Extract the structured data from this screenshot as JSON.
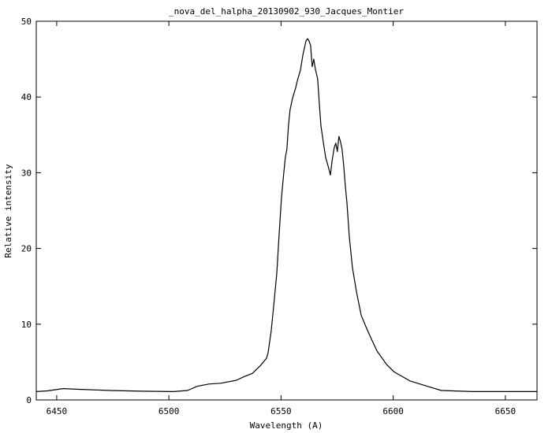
{
  "chart_data": {
    "type": "line",
    "title": "_nova_del_halpha_20130902_930_Jacques_Montier",
    "xlabel": "Wavelength (A)",
    "ylabel": "Relative intensity",
    "xlim": [
      6440.9,
      6664.1
    ],
    "ylim": [
      0,
      50
    ],
    "xticks": [
      6450,
      6500,
      6550,
      6600,
      6650
    ],
    "yticks": [
      0,
      10,
      20,
      30,
      40,
      50
    ],
    "grid": false,
    "legend": null,
    "series": [
      {
        "name": "nova_del_halpha",
        "color": "#000000",
        "x": [
          6440.9,
          6445.8,
          6452.8,
          6459.8,
          6473.9,
          6488.0,
          6502.0,
          6508.3,
          6512.6,
          6517.8,
          6523.1,
          6530.1,
          6533.7,
          6537.2,
          6540.7,
          6543.5,
          6544.2,
          6545.6,
          6547.0,
          6548.1,
          6549.1,
          6550.2,
          6551.2,
          6551.9,
          6552.6,
          6553.3,
          6554.0,
          6555.1,
          6556.5,
          6557.5,
          6558.6,
          6559.7,
          6561.1,
          6561.8,
          6562.5,
          6563.2,
          6563.9,
          6564.6,
          6565.3,
          6566.3,
          6567.0,
          6567.8,
          6568.8,
          6569.9,
          6570.9,
          6572.0,
          6572.7,
          6573.7,
          6574.4,
          6575.1,
          6575.8,
          6576.5,
          6577.2,
          6577.9,
          6578.6,
          6579.4,
          6580.4,
          6581.8,
          6583.6,
          6585.7,
          6587.8,
          6589.9,
          6592.7,
          6597.0,
          6600.4,
          6607.5,
          6616.3,
          6621.5,
          6635.6,
          6649.6,
          6664.1
        ],
        "y": [
          1.1,
          1.2,
          1.5,
          1.4,
          1.25,
          1.15,
          1.1,
          1.25,
          1.8,
          2.1,
          2.2,
          2.6,
          3.1,
          3.5,
          4.5,
          5.5,
          6.2,
          9.1,
          13.3,
          16.7,
          21.6,
          26.8,
          29.9,
          32.0,
          33.1,
          36.2,
          38.3,
          39.8,
          41.2,
          42.4,
          43.5,
          45.5,
          47.4,
          47.7,
          47.4,
          46.8,
          44.0,
          45.0,
          43.7,
          42.4,
          39.3,
          36.2,
          34.1,
          32.0,
          31.0,
          29.7,
          31.5,
          33.3,
          33.9,
          32.8,
          34.8,
          34.1,
          33.1,
          31.0,
          28.4,
          26.0,
          21.6,
          17.5,
          14.3,
          11.2,
          9.7,
          8.3,
          6.5,
          4.7,
          3.7,
          2.5,
          1.7,
          1.25,
          1.1,
          1.1,
          1.1
        ]
      }
    ]
  }
}
